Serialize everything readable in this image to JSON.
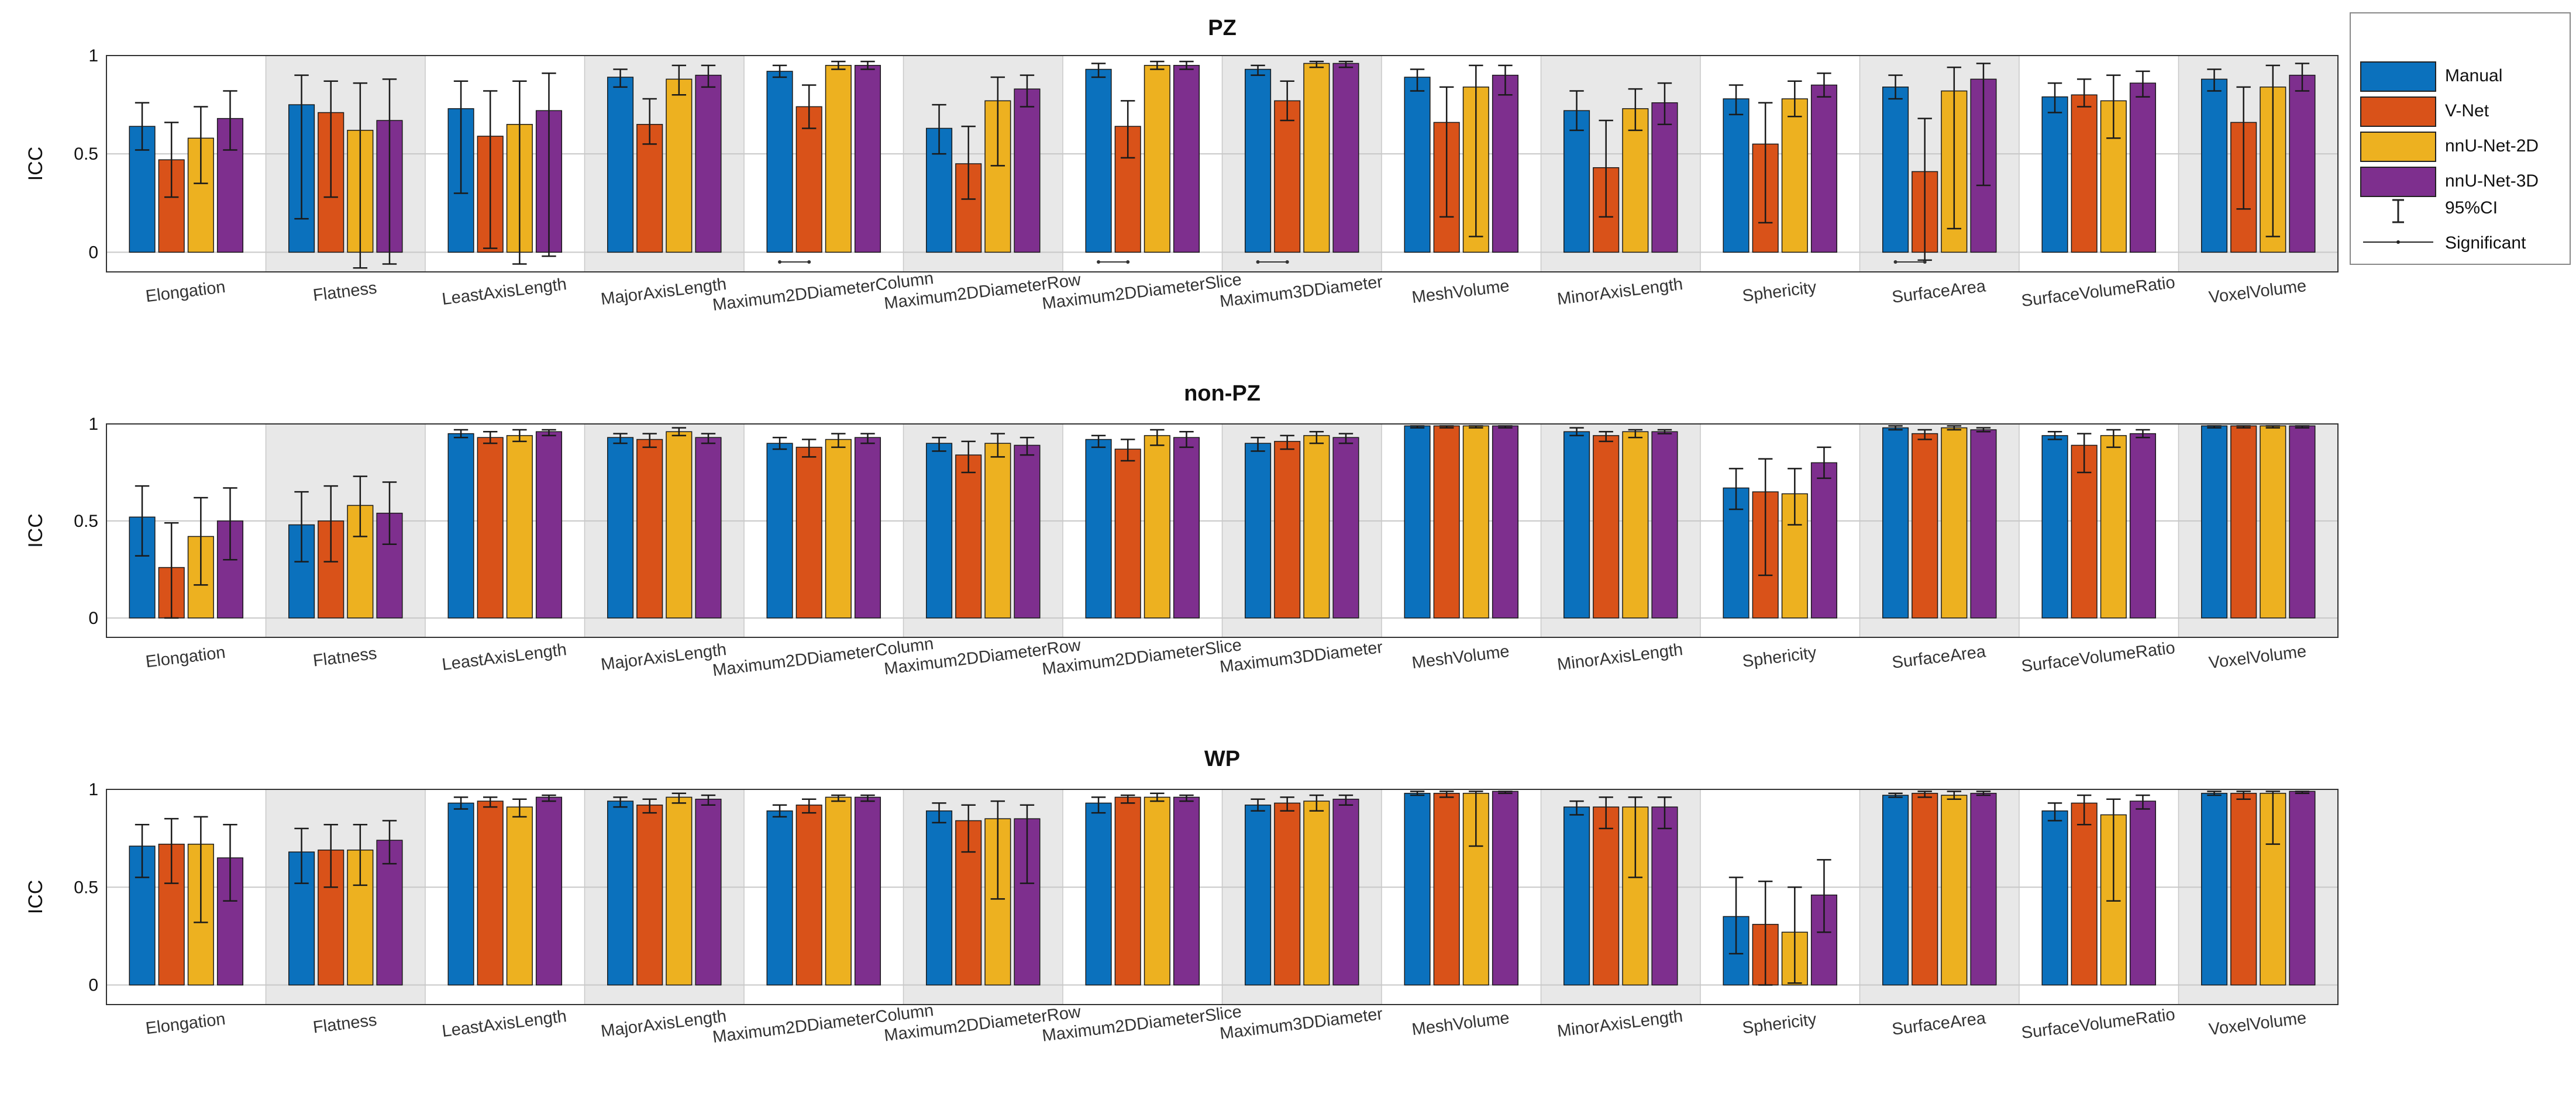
{
  "chart_data": [
    {
      "type": "bar",
      "title": "PZ",
      "ylabel": "ICC",
      "ylim": [
        -0.1,
        1.0
      ],
      "yticks": [
        "0",
        "0.5",
        "1"
      ],
      "categories": [
        "Elongation",
        "Flatness",
        "LeastAxisLength",
        "MajorAxisLength",
        "Maximum2DDiameterColumn",
        "Maximum2DDiameterRow",
        "Maximum2DDiameterSlice",
        "Maximum3DDiameter",
        "MeshVolume",
        "MinorAxisLength",
        "Sphericity",
        "SurfaceArea",
        "SurfaceVolumeRatio",
        "VoxelVolume"
      ],
      "series": [
        {
          "name": "Manual",
          "values": [
            0.64,
            0.75,
            0.73,
            0.89,
            0.92,
            0.63,
            0.93,
            0.93,
            0.89,
            0.72,
            0.78,
            0.84,
            0.79,
            0.88
          ],
          "ci_low": [
            0.52,
            0.17,
            0.3,
            0.84,
            0.89,
            0.5,
            0.89,
            0.9,
            0.82,
            0.62,
            0.7,
            0.78,
            0.71,
            0.82
          ],
          "ci_high": [
            0.76,
            0.9,
            0.87,
            0.93,
            0.95,
            0.75,
            0.96,
            0.95,
            0.93,
            0.82,
            0.85,
            0.9,
            0.86,
            0.93
          ]
        },
        {
          "name": "V-Net",
          "values": [
            0.47,
            0.71,
            0.59,
            0.65,
            0.74,
            0.45,
            0.64,
            0.77,
            0.66,
            0.43,
            0.55,
            0.41,
            0.8,
            0.66
          ],
          "ci_low": [
            0.28,
            0.28,
            0.02,
            0.55,
            0.63,
            0.27,
            0.48,
            0.67,
            0.18,
            0.18,
            0.15,
            -0.04,
            0.74,
            0.22
          ],
          "ci_high": [
            0.66,
            0.87,
            0.82,
            0.78,
            0.85,
            0.64,
            0.77,
            0.87,
            0.84,
            0.67,
            0.76,
            0.68,
            0.88,
            0.84
          ]
        },
        {
          "name": "nnU-Net-2D",
          "values": [
            0.58,
            0.62,
            0.65,
            0.88,
            0.95,
            0.77,
            0.95,
            0.96,
            0.84,
            0.73,
            0.78,
            0.82,
            0.77,
            0.84
          ],
          "ci_low": [
            0.35,
            -0.08,
            -0.06,
            0.8,
            0.93,
            0.44,
            0.93,
            0.94,
            0.08,
            0.62,
            0.69,
            0.12,
            0.58,
            0.08
          ],
          "ci_high": [
            0.74,
            0.86,
            0.87,
            0.95,
            0.97,
            0.89,
            0.97,
            0.97,
            0.95,
            0.83,
            0.87,
            0.94,
            0.9,
            0.95
          ]
        },
        {
          "name": "nnU-Net-3D",
          "values": [
            0.68,
            0.67,
            0.72,
            0.9,
            0.95,
            0.83,
            0.95,
            0.96,
            0.9,
            0.76,
            0.85,
            0.88,
            0.86,
            0.9
          ],
          "ci_low": [
            0.52,
            -0.06,
            -0.02,
            0.84,
            0.93,
            0.74,
            0.93,
            0.94,
            0.8,
            0.65,
            0.79,
            0.34,
            0.79,
            0.82
          ],
          "ci_high": [
            0.82,
            0.88,
            0.91,
            0.95,
            0.97,
            0.9,
            0.97,
            0.97,
            0.95,
            0.86,
            0.91,
            0.96,
            0.92,
            0.96
          ]
        }
      ],
      "significant": [
        "Maximum2DDiameterColumn",
        "Maximum2DDiameterSlice",
        "Maximum3DDiameter",
        "SurfaceArea"
      ]
    },
    {
      "type": "bar",
      "title": "non-PZ",
      "ylabel": "ICC",
      "ylim": [
        -0.1,
        1.0
      ],
      "yticks": [
        "0",
        "0.5",
        "1"
      ],
      "categories": [
        "Elongation",
        "Flatness",
        "LeastAxisLength",
        "MajorAxisLength",
        "Maximum2DDiameterColumn",
        "Maximum2DDiameterRow",
        "Maximum2DDiameterSlice",
        "Maximum3DDiameter",
        "MeshVolume",
        "MinorAxisLength",
        "Sphericity",
        "SurfaceArea",
        "SurfaceVolumeRatio",
        "VoxelVolume"
      ],
      "series": [
        {
          "name": "Manual",
          "values": [
            0.52,
            0.48,
            0.95,
            0.93,
            0.9,
            0.9,
            0.92,
            0.9,
            0.99,
            0.96,
            0.67,
            0.98,
            0.94,
            0.99
          ],
          "ci_low": [
            0.32,
            0.29,
            0.93,
            0.9,
            0.87,
            0.86,
            0.88,
            0.86,
            0.98,
            0.94,
            0.56,
            0.97,
            0.92,
            0.98
          ],
          "ci_high": [
            0.68,
            0.65,
            0.97,
            0.95,
            0.93,
            0.93,
            0.94,
            0.93,
            0.99,
            0.98,
            0.77,
            0.99,
            0.96,
            0.99
          ]
        },
        {
          "name": "V-Net",
          "values": [
            0.26,
            0.5,
            0.93,
            0.92,
            0.88,
            0.84,
            0.87,
            0.91,
            0.99,
            0.94,
            0.65,
            0.95,
            0.89,
            0.99
          ],
          "ci_low": [
            0.0,
            0.29,
            0.9,
            0.88,
            0.83,
            0.75,
            0.81,
            0.87,
            0.98,
            0.91,
            0.22,
            0.92,
            0.75,
            0.98
          ],
          "ci_high": [
            0.49,
            0.68,
            0.96,
            0.95,
            0.92,
            0.91,
            0.92,
            0.94,
            0.99,
            0.96,
            0.82,
            0.97,
            0.95,
            0.99
          ]
        },
        {
          "name": "nnU-Net-2D",
          "values": [
            0.42,
            0.58,
            0.94,
            0.96,
            0.92,
            0.9,
            0.94,
            0.94,
            0.99,
            0.96,
            0.64,
            0.98,
            0.94,
            0.99
          ],
          "ci_low": [
            0.17,
            0.42,
            0.91,
            0.94,
            0.88,
            0.83,
            0.89,
            0.9,
            0.98,
            0.93,
            0.48,
            0.97,
            0.88,
            0.98
          ],
          "ci_high": [
            0.62,
            0.73,
            0.97,
            0.98,
            0.95,
            0.95,
            0.97,
            0.96,
            0.99,
            0.97,
            0.77,
            0.99,
            0.97,
            0.99
          ]
        },
        {
          "name": "nnU-Net-3D",
          "values": [
            0.5,
            0.54,
            0.96,
            0.93,
            0.93,
            0.89,
            0.93,
            0.93,
            0.99,
            0.96,
            0.8,
            0.97,
            0.95,
            0.99
          ],
          "ci_low": [
            0.3,
            0.38,
            0.94,
            0.9,
            0.9,
            0.84,
            0.88,
            0.9,
            0.98,
            0.95,
            0.72,
            0.96,
            0.93,
            0.98
          ],
          "ci_high": [
            0.67,
            0.7,
            0.97,
            0.95,
            0.95,
            0.93,
            0.96,
            0.95,
            0.99,
            0.97,
            0.88,
            0.98,
            0.97,
            0.99
          ]
        }
      ],
      "significant": []
    },
    {
      "type": "bar",
      "title": "WP",
      "ylabel": "ICC",
      "ylim": [
        -0.1,
        1.0
      ],
      "yticks": [
        "0",
        "0.5",
        "1"
      ],
      "categories": [
        "Elongation",
        "Flatness",
        "LeastAxisLength",
        "MajorAxisLength",
        "Maximum2DDiameterColumn",
        "Maximum2DDiameterRow",
        "Maximum2DDiameterSlice",
        "Maximum3DDiameter",
        "MeshVolume",
        "MinorAxisLength",
        "Sphericity",
        "SurfaceArea",
        "SurfaceVolumeRatio",
        "VoxelVolume"
      ],
      "series": [
        {
          "name": "Manual",
          "values": [
            0.71,
            0.68,
            0.93,
            0.94,
            0.89,
            0.89,
            0.93,
            0.92,
            0.98,
            0.91,
            0.35,
            0.97,
            0.89,
            0.98
          ],
          "ci_low": [
            0.55,
            0.52,
            0.9,
            0.91,
            0.86,
            0.83,
            0.88,
            0.89,
            0.97,
            0.87,
            0.16,
            0.96,
            0.84,
            0.97
          ],
          "ci_high": [
            0.82,
            0.8,
            0.96,
            0.96,
            0.92,
            0.93,
            0.96,
            0.95,
            0.99,
            0.94,
            0.55,
            0.98,
            0.93,
            0.99
          ]
        },
        {
          "name": "V-Net",
          "values": [
            0.72,
            0.69,
            0.94,
            0.92,
            0.92,
            0.84,
            0.96,
            0.93,
            0.98,
            0.91,
            0.31,
            0.98,
            0.93,
            0.98
          ],
          "ci_low": [
            0.52,
            0.5,
            0.91,
            0.88,
            0.88,
            0.68,
            0.93,
            0.89,
            0.96,
            0.8,
            0.0,
            0.96,
            0.82,
            0.95
          ],
          "ci_high": [
            0.85,
            0.82,
            0.96,
            0.95,
            0.95,
            0.92,
            0.97,
            0.96,
            0.99,
            0.96,
            0.53,
            0.99,
            0.97,
            0.99
          ]
        },
        {
          "name": "nnU-Net-2D",
          "values": [
            0.72,
            0.69,
            0.91,
            0.96,
            0.96,
            0.85,
            0.96,
            0.94,
            0.98,
            0.91,
            0.27,
            0.97,
            0.87,
            0.98
          ],
          "ci_low": [
            0.32,
            0.51,
            0.86,
            0.93,
            0.94,
            0.44,
            0.94,
            0.89,
            0.71,
            0.55,
            0.01,
            0.95,
            0.43,
            0.72
          ],
          "ci_high": [
            0.86,
            0.82,
            0.95,
            0.98,
            0.97,
            0.94,
            0.98,
            0.97,
            0.99,
            0.96,
            0.5,
            0.99,
            0.95,
            0.99
          ]
        },
        {
          "name": "nnU-Net-3D",
          "values": [
            0.65,
            0.74,
            0.96,
            0.95,
            0.96,
            0.85,
            0.96,
            0.95,
            0.99,
            0.91,
            0.46,
            0.98,
            0.94,
            0.99
          ],
          "ci_low": [
            0.43,
            0.62,
            0.94,
            0.92,
            0.94,
            0.52,
            0.94,
            0.92,
            0.98,
            0.8,
            0.27,
            0.97,
            0.9,
            0.98
          ],
          "ci_high": [
            0.82,
            0.84,
            0.97,
            0.97,
            0.97,
            0.92,
            0.97,
            0.97,
            0.99,
            0.96,
            0.64,
            0.99,
            0.97,
            0.99
          ]
        }
      ],
      "significant": []
    }
  ],
  "legend": {
    "placement": "top-right",
    "items": [
      {
        "label": "Manual",
        "color": "#0b71bd"
      },
      {
        "label": "V-Net",
        "color": "#d95219"
      },
      {
        "label": "nnU-Net-2D",
        "color": "#edb120"
      },
      {
        "label": "nnU-Net-3D",
        "color": "#7e2f8e"
      }
    ],
    "ci_label": "95%CI",
    "sig_label": "Significant"
  },
  "colors": {
    "shade": "#e8e8e8",
    "grid": "#c8c8c8",
    "axis": "#333333"
  }
}
